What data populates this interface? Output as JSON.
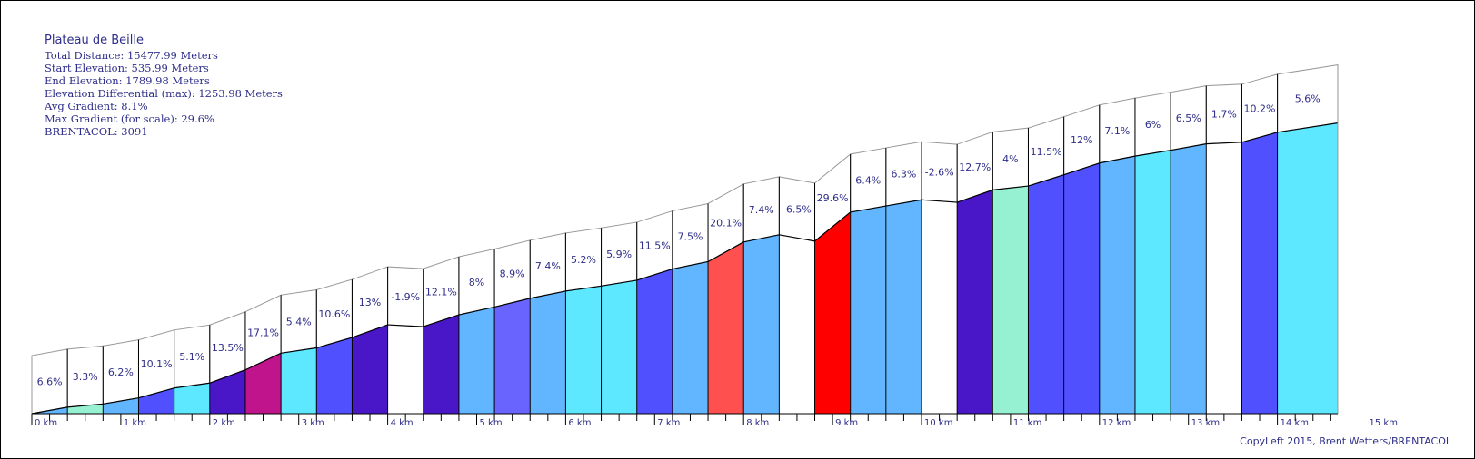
{
  "info": {
    "title": "Plateau de Beille",
    "total_distance": "Total Distance: 15477.99 Meters",
    "start_elevation": "Start Elevation: 535.99 Meters",
    "end_elevation": "End Elevation: 1789.98 Meters",
    "elevation_differential": "Elevation Differential (max): 1253.98 Meters",
    "avg_gradient": "Avg Gradient: 8.1%",
    "max_gradient": "Max Gradient (for scale): 29.6%",
    "brentacol": "BRENTACOL: 3091"
  },
  "copyleft": "CopyLeft 2015, Brent Wetters/BRENTACOL",
  "colors": {
    "text": "#2e2e8a",
    "outline": "#000000",
    "band": "#999999"
  },
  "chart_data": {
    "type": "area",
    "title": "Plateau de Beille",
    "xlabel": "",
    "ylabel": "",
    "x_unit": "km",
    "x_ticks": [
      "0 km",
      "1 km",
      "2 km",
      "3 km",
      "4 km",
      "5 km",
      "6 km",
      "7 km",
      "8 km",
      "9 km",
      "10 km",
      "11 km",
      "12 km",
      "13 km",
      "14 km",
      "15 km"
    ],
    "segment_length_km": 0.4,
    "last_segment_length_km": 0.678,
    "gradients": [
      "6.6%",
      "3.3%",
      "6.2%",
      "10.1%",
      "5.1%",
      "13.5%",
      "17.1%",
      "5.4%",
      "10.6%",
      "13%",
      "-1.9%",
      "12.1%",
      "8%",
      "8.9%",
      "7.4%",
      "5.2%",
      "5.9%",
      "11.5%",
      "7.5%",
      "20.1%",
      "7.4%",
      "-6.5%",
      "29.6%",
      "6.4%",
      "6.3%",
      "-2.6%",
      "12.7%",
      "4%",
      "11.5%",
      "12%",
      "7.1%",
      "6%",
      "6.5%",
      "1.7%",
      "10.2%",
      "5.6%"
    ],
    "gradient_values": [
      6.6,
      3.3,
      6.2,
      10.1,
      5.1,
      13.5,
      17.1,
      5.4,
      10.6,
      13,
      -1.9,
      12.1,
      8,
      8.9,
      7.4,
      5.2,
      5.9,
      11.5,
      7.5,
      20.1,
      7.4,
      -6.5,
      29.6,
      6.4,
      6.3,
      -2.6,
      12.7,
      4,
      11.5,
      12,
      7.1,
      6,
      6.5,
      1.7,
      10.2,
      5.6
    ],
    "segment_colors": [
      "#62b5ff",
      "#96f0d2",
      "#62b5ff",
      "#5050ff",
      "#5ee8ff",
      "#4a17c8",
      "#c0148c",
      "#5ee8ff",
      "#5050ff",
      "#4a17c8",
      "#ffffff",
      "#4a17c8",
      "#62b5ff",
      "#6a64ff",
      "#62b5ff",
      "#5ee8ff",
      "#5ee8ff",
      "#5050ff",
      "#62b5ff",
      "#ff5050",
      "#62b5ff",
      "#ffffff",
      "#ff0000",
      "#62b5ff",
      "#62b5ff",
      "#ffffff",
      "#4a17c8",
      "#96f0d2",
      "#5050ff",
      "#5050ff",
      "#62b5ff",
      "#5ee8ff",
      "#62b5ff",
      "#ffffff",
      "#5050ff",
      "#5ee8ff"
    ],
    "start_elevation_m": 535.99,
    "end_elevation_m": 1789.98,
    "total_distance_m": 15477.99,
    "grid": false,
    "legend": "none"
  }
}
